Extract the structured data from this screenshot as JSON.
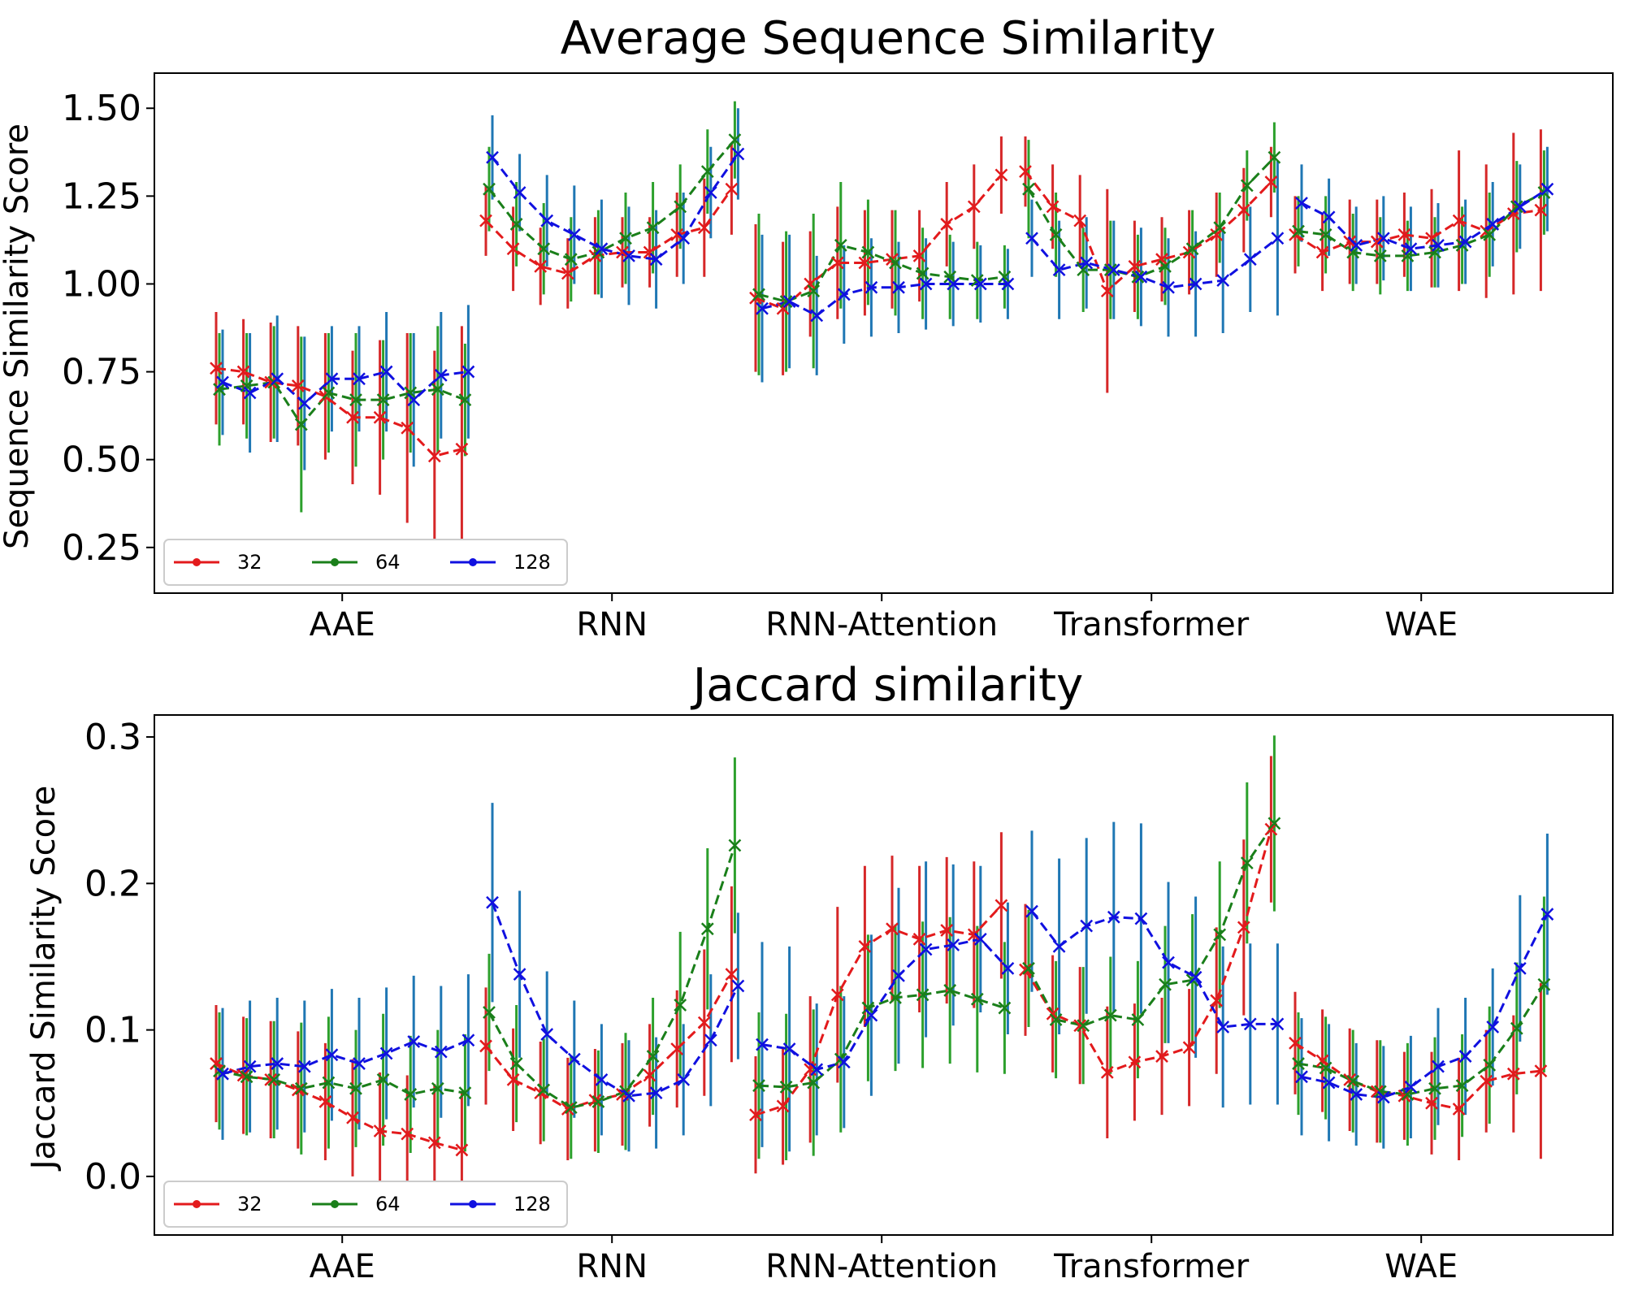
{
  "colors": {
    "32": "#e31a1c",
    "64": "#1a7f1a",
    "128": "#1010e0",
    "err_32": "#d62728",
    "err_64": "#2ca02c",
    "err_128": "#1f77b4"
  },
  "chart_data": [
    {
      "type": "line",
      "title": "Average Sequence Similarity",
      "xlabel": "",
      "ylabel": "Sequence Similarity Score",
      "categories": [
        "AAE",
        "RNN",
        "RNN-Attention",
        "Transformer",
        "WAE"
      ],
      "yticks": [
        "0.25",
        "0.50",
        "0.75",
        "1.00",
        "1.25",
        "1.50"
      ],
      "ylim": [
        0.12,
        1.6
      ],
      "grid": false,
      "legend_position": "lower-left",
      "legend": [
        "32",
        "64",
        "128"
      ],
      "points_per_group": 10,
      "series": [
        {
          "name": "32",
          "values": [
            [
              0.76,
              0.75,
              0.72,
              0.71,
              0.68,
              0.62,
              0.62,
              0.59,
              0.51,
              0.53
            ],
            [
              1.18,
              1.1,
              1.05,
              1.03,
              1.08,
              1.09,
              1.09,
              1.14,
              1.16,
              1.27
            ],
            [
              0.96,
              0.93,
              1.0,
              1.06,
              1.06,
              1.07,
              1.08,
              1.17,
              1.22,
              1.31
            ],
            [
              1.32,
              1.22,
              1.18,
              0.98,
              1.05,
              1.07,
              1.09,
              1.14,
              1.21,
              1.29
            ],
            [
              1.14,
              1.09,
              1.12,
              1.12,
              1.14,
              1.13,
              1.18,
              1.15,
              1.2,
              1.21
            ]
          ],
          "err": [
            [
              0.16,
              0.15,
              0.17,
              0.17,
              0.18,
              0.19,
              0.22,
              0.27,
              0.3,
              0.35
            ],
            [
              0.1,
              0.12,
              0.11,
              0.1,
              0.11,
              0.1,
              0.1,
              0.12,
              0.14,
              0.13
            ],
            [
              0.21,
              0.19,
              0.15,
              0.16,
              0.15,
              0.14,
              0.13,
              0.12,
              0.12,
              0.11
            ],
            [
              0.1,
              0.12,
              0.13,
              0.29,
              0.13,
              0.12,
              0.12,
              0.12,
              0.12,
              0.1
            ],
            [
              0.11,
              0.11,
              0.12,
              0.12,
              0.12,
              0.14,
              0.2,
              0.19,
              0.23,
              0.23
            ]
          ]
        },
        {
          "name": "64",
          "values": [
            [
              0.7,
              0.71,
              0.72,
              0.6,
              0.69,
              0.67,
              0.67,
              0.69,
              0.7,
              0.67
            ],
            [
              1.27,
              1.17,
              1.1,
              1.07,
              1.09,
              1.13,
              1.16,
              1.22,
              1.32,
              1.41
            ],
            [
              0.97,
              0.95,
              0.98,
              1.11,
              1.09,
              1.06,
              1.03,
              1.02,
              1.01,
              1.02
            ],
            [
              1.27,
              1.14,
              1.04,
              1.04,
              1.02,
              1.05,
              1.1,
              1.16,
              1.28,
              1.36
            ],
            [
              1.15,
              1.14,
              1.09,
              1.08,
              1.08,
              1.09,
              1.11,
              1.14,
              1.22,
              1.26
            ]
          ],
          "err": [
            [
              0.16,
              0.15,
              0.16,
              0.25,
              0.17,
              0.19,
              0.17,
              0.17,
              0.18,
              0.16
            ],
            [
              0.12,
              0.12,
              0.13,
              0.12,
              0.12,
              0.13,
              0.13,
              0.12,
              0.12,
              0.11
            ],
            [
              0.23,
              0.2,
              0.22,
              0.18,
              0.15,
              0.15,
              0.13,
              0.12,
              0.11,
              0.09
            ],
            [
              0.14,
              0.12,
              0.12,
              0.14,
              0.12,
              0.11,
              0.11,
              0.1,
              0.1,
              0.1
            ],
            [
              0.1,
              0.11,
              0.11,
              0.11,
              0.1,
              0.1,
              0.11,
              0.12,
              0.13,
              0.12
            ]
          ]
        },
        {
          "name": "128",
          "values": [
            [
              0.72,
              0.69,
              0.73,
              0.66,
              0.73,
              0.73,
              0.75,
              0.67,
              0.74,
              0.75
            ],
            [
              1.36,
              1.26,
              1.18,
              1.14,
              1.1,
              1.08,
              1.07,
              1.13,
              1.26,
              1.37
            ],
            [
              0.93,
              0.95,
              0.91,
              0.97,
              0.99,
              0.99,
              1.0,
              1.0,
              1.0,
              1.0
            ],
            [
              1.13,
              1.04,
              1.06,
              1.04,
              1.02,
              0.99,
              1.0,
              1.01,
              1.07,
              1.13
            ],
            [
              1.23,
              1.19,
              1.11,
              1.13,
              1.1,
              1.11,
              1.12,
              1.17,
              1.22,
              1.27
            ]
          ],
          "err": [
            [
              0.15,
              0.17,
              0.18,
              0.19,
              0.15,
              0.15,
              0.17,
              0.19,
              0.18,
              0.19
            ],
            [
              0.12,
              0.11,
              0.13,
              0.14,
              0.14,
              0.14,
              0.14,
              0.13,
              0.13,
              0.13
            ],
            [
              0.21,
              0.19,
              0.17,
              0.14,
              0.14,
              0.13,
              0.13,
              0.12,
              0.11,
              0.1
            ],
            [
              0.11,
              0.14,
              0.13,
              0.14,
              0.14,
              0.14,
              0.15,
              0.15,
              0.15,
              0.22
            ],
            [
              0.11,
              0.11,
              0.11,
              0.12,
              0.12,
              0.12,
              0.12,
              0.12,
              0.12,
              0.12
            ]
          ]
        }
      ]
    },
    {
      "type": "line",
      "title": "Jaccard similarity",
      "xlabel": "",
      "ylabel": "Jaccard Similarity Score",
      "categories": [
        "AAE",
        "RNN",
        "RNN-Attention",
        "Transformer",
        "WAE"
      ],
      "yticks": [
        "0.0",
        "0.1",
        "0.2",
        "0.3"
      ],
      "ylim": [
        -0.04,
        0.315
      ],
      "grid": false,
      "legend_position": "lower-left",
      "legend": [
        "32",
        "64",
        "128"
      ],
      "points_per_group": 10,
      "series": [
        {
          "name": "32",
          "values": [
            [
              0.077,
              0.069,
              0.066,
              0.059,
              0.051,
              0.04,
              0.031,
              0.029,
              0.023,
              0.018
            ],
            [
              0.089,
              0.066,
              0.057,
              0.046,
              0.052,
              0.056,
              0.069,
              0.087,
              0.105,
              0.138
            ],
            [
              0.042,
              0.048,
              0.073,
              0.124,
              0.157,
              0.169,
              0.162,
              0.168,
              0.165,
              0.185
            ],
            [
              0.141,
              0.111,
              0.103,
              0.071,
              0.078,
              0.082,
              0.088,
              0.12,
              0.17,
              0.237
            ],
            [
              0.091,
              0.079,
              0.066,
              0.058,
              0.055,
              0.05,
              0.046,
              0.065,
              0.07,
              0.072
            ]
          ],
          "err": [
            [
              0.04,
              0.04,
              0.04,
              0.04,
              0.04,
              0.04,
              0.04,
              0.04,
              0.04,
              0.04
            ],
            [
              0.04,
              0.035,
              0.035,
              0.035,
              0.035,
              0.035,
              0.035,
              0.04,
              0.05,
              0.06
            ],
            [
              0.04,
              0.04,
              0.05,
              0.06,
              0.055,
              0.05,
              0.05,
              0.05,
              0.05,
              0.05
            ],
            [
              0.045,
              0.04,
              0.04,
              0.045,
              0.04,
              0.04,
              0.04,
              0.05,
              0.06,
              0.05
            ],
            [
              0.035,
              0.035,
              0.035,
              0.035,
              0.03,
              0.035,
              0.035,
              0.035,
              0.04,
              0.06
            ]
          ]
        },
        {
          "name": "64",
          "values": [
            [
              0.072,
              0.068,
              0.066,
              0.06,
              0.064,
              0.06,
              0.066,
              0.056,
              0.06,
              0.057
            ],
            [
              0.112,
              0.077,
              0.059,
              0.047,
              0.051,
              0.058,
              0.082,
              0.117,
              0.169,
              0.226
            ],
            [
              0.062,
              0.061,
              0.064,
              0.08,
              0.115,
              0.122,
              0.124,
              0.127,
              0.121,
              0.115
            ],
            [
              0.142,
              0.107,
              0.103,
              0.11,
              0.107,
              0.131,
              0.134,
              0.165,
              0.214,
              0.241
            ],
            [
              0.077,
              0.074,
              0.065,
              0.058,
              0.056,
              0.06,
              0.062,
              0.076,
              0.101,
              0.131
            ]
          ],
          "err": [
            [
              0.04,
              0.04,
              0.04,
              0.045,
              0.045,
              0.04,
              0.045,
              0.04,
              0.04,
              0.04
            ],
            [
              0.04,
              0.04,
              0.035,
              0.035,
              0.035,
              0.04,
              0.04,
              0.05,
              0.055,
              0.06
            ],
            [
              0.05,
              0.05,
              0.05,
              0.05,
              0.05,
              0.05,
              0.05,
              0.05,
              0.05,
              0.045
            ],
            [
              0.04,
              0.04,
              0.04,
              0.04,
              0.04,
              0.04,
              0.045,
              0.05,
              0.055,
              0.06
            ],
            [
              0.035,
              0.035,
              0.035,
              0.035,
              0.035,
              0.035,
              0.035,
              0.04,
              0.045,
              0.06
            ]
          ]
        },
        {
          "name": "128",
          "values": [
            [
              0.07,
              0.075,
              0.077,
              0.075,
              0.083,
              0.077,
              0.084,
              0.092,
              0.085,
              0.093
            ],
            [
              0.187,
              0.138,
              0.097,
              0.08,
              0.066,
              0.055,
              0.057,
              0.066,
              0.093,
              0.13
            ],
            [
              0.09,
              0.087,
              0.073,
              0.078,
              0.11,
              0.137,
              0.155,
              0.158,
              0.162,
              0.142
            ],
            [
              0.181,
              0.157,
              0.171,
              0.177,
              0.176,
              0.146,
              0.136,
              0.102,
              0.104,
              0.104
            ],
            [
              0.068,
              0.064,
              0.056,
              0.054,
              0.061,
              0.075,
              0.082,
              0.102,
              0.142,
              0.179
            ]
          ],
          "err": [
            [
              0.045,
              0.045,
              0.045,
              0.045,
              0.045,
              0.045,
              0.045,
              0.045,
              0.045,
              0.045
            ],
            [
              0.068,
              0.057,
              0.043,
              0.04,
              0.038,
              0.038,
              0.038,
              0.038,
              0.045,
              0.05
            ],
            [
              0.07,
              0.07,
              0.045,
              0.045,
              0.055,
              0.06,
              0.06,
              0.055,
              0.05,
              0.045
            ],
            [
              0.055,
              0.06,
              0.06,
              0.065,
              0.065,
              0.055,
              0.055,
              0.055,
              0.055,
              0.055
            ],
            [
              0.04,
              0.04,
              0.035,
              0.035,
              0.035,
              0.04,
              0.04,
              0.04,
              0.05,
              0.055
            ]
          ]
        }
      ]
    }
  ]
}
